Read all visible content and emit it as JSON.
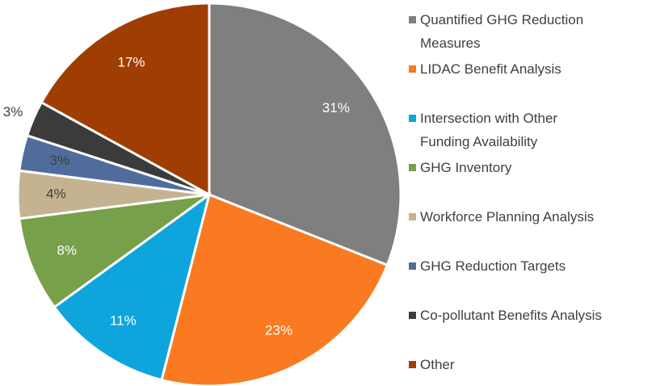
{
  "chart_data": {
    "type": "pie",
    "categories": [
      "Quantified GHG Reduction Measures",
      "LIDAC Benefit Analysis",
      "Intersection with Other Funding Availability",
      "GHG Inventory",
      "Workforce Planning Analysis",
      "GHG Reduction Targets",
      "Co-pollutant Benefits Analysis",
      "Other"
    ],
    "values": [
      31,
      23,
      11,
      8,
      4,
      3,
      3,
      17
    ],
    "value_labels": [
      "31%",
      "23%",
      "11%",
      "8%",
      "4%",
      "3%",
      "3%",
      "17%"
    ],
    "colors": [
      "#7f7f80",
      "#f97a21",
      "#0ea5dd",
      "#77a04a",
      "#c5b291",
      "#4f6c9c",
      "#3b3b3b",
      "#a03d03"
    ],
    "legend": "right"
  }
}
